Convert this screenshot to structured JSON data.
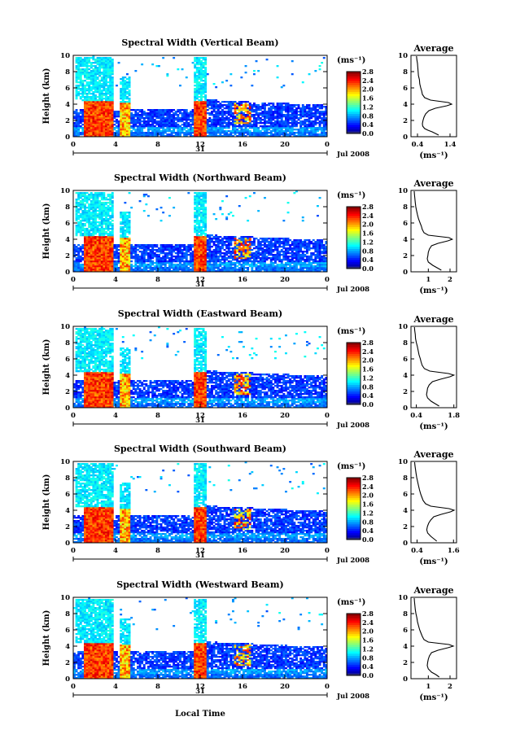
{
  "figure": {
    "xlabel": "Local Time",
    "date_label": "Jul 2008",
    "day_label": "31"
  },
  "chart_data": [
    {
      "type": "heatmap",
      "title": "Spectral Width (Vertical Beam)",
      "ylabel": "Height (km)",
      "xlim": [
        0,
        24
      ],
      "ylim": [
        0,
        10
      ],
      "xticks": [
        "0",
        "4",
        "8",
        "12",
        "16",
        "20",
        "0"
      ],
      "yticks": [
        "0",
        "2",
        "4",
        "6",
        "8",
        "10"
      ],
      "colorbar": {
        "unit": "(ms⁻¹)",
        "ticks": [
          "0.0",
          "0.4",
          "0.8",
          "1.2",
          "1.6",
          "2.0",
          "2.4",
          "2.8"
        ],
        "range": [
          0,
          2.8
        ]
      },
      "average": {
        "title": "Average",
        "xlabel": "(ms⁻¹)",
        "xticks": [
          "0.4",
          "1.4"
        ],
        "xlim": [
          0.2,
          1.6
        ],
        "profile": [
          [
            0.2,
            1.05
          ],
          [
            0.4,
            0.95
          ],
          [
            0.6,
            0.85
          ],
          [
            0.8,
            0.72
          ],
          [
            1.0,
            0.62
          ],
          [
            1.3,
            0.56
          ],
          [
            1.6,
            0.55
          ],
          [
            2.0,
            0.57
          ],
          [
            2.4,
            0.6
          ],
          [
            2.8,
            0.65
          ],
          [
            3.2,
            0.75
          ],
          [
            3.5,
            0.95
          ],
          [
            3.8,
            1.3
          ],
          [
            4.0,
            1.45
          ],
          [
            4.2,
            1.35
          ],
          [
            4.5,
            0.8
          ],
          [
            4.8,
            0.62
          ],
          [
            5.2,
            0.55
          ],
          [
            5.6,
            0.53
          ],
          [
            6.0,
            0.5
          ],
          [
            6.5,
            0.47
          ],
          [
            7.0,
            0.46
          ],
          [
            7.5,
            0.43
          ],
          [
            8.0,
            0.42
          ],
          [
            8.5,
            0.41
          ],
          [
            9.0,
            0.4
          ],
          [
            9.5,
            0.38
          ],
          [
            9.9,
            0.37
          ]
        ]
      }
    },
    {
      "type": "heatmap",
      "title": "Spectral Width (Northward Beam)",
      "ylabel": "Height (km)",
      "xlim": [
        0,
        24
      ],
      "ylim": [
        0,
        10
      ],
      "xticks": [
        "0",
        "4",
        "8",
        "12",
        "16",
        "20",
        "0"
      ],
      "yticks": [
        "0",
        "2",
        "4",
        "6",
        "8",
        "10"
      ],
      "colorbar": {
        "unit": "(ms⁻¹)",
        "ticks": [
          "0.0",
          "0.4",
          "0.8",
          "1.2",
          "1.6",
          "2.0",
          "2.4",
          "2.8"
        ],
        "range": [
          0,
          2.8
        ]
      },
      "average": {
        "title": "Average",
        "xlabel": "(ms⁻¹)",
        "xticks": [
          "1",
          "2"
        ],
        "xlim": [
          0.2,
          2.3
        ],
        "profile": [
          [
            0.2,
            1.6
          ],
          [
            0.5,
            1.4
          ],
          [
            0.8,
            1.2
          ],
          [
            1.2,
            1.0
          ],
          [
            1.6,
            0.95
          ],
          [
            2.0,
            0.98
          ],
          [
            2.4,
            1.0
          ],
          [
            2.8,
            1.05
          ],
          [
            3.2,
            1.15
          ],
          [
            3.5,
            1.45
          ],
          [
            3.8,
            1.9
          ],
          [
            4.0,
            2.1
          ],
          [
            4.2,
            1.95
          ],
          [
            4.5,
            1.0
          ],
          [
            4.8,
            0.8
          ],
          [
            5.2,
            0.72
          ],
          [
            5.6,
            0.68
          ],
          [
            6.0,
            0.62
          ],
          [
            6.5,
            0.55
          ],
          [
            7.0,
            0.5
          ],
          [
            7.5,
            0.46
          ],
          [
            8.0,
            0.42
          ],
          [
            8.5,
            0.4
          ],
          [
            9.0,
            0.38
          ],
          [
            9.5,
            0.36
          ],
          [
            9.9,
            0.35
          ]
        ]
      }
    },
    {
      "type": "heatmap",
      "title": "Spectral Width (Eastward Beam)",
      "ylabel": "Height (km)",
      "xlim": [
        0,
        24
      ],
      "ylim": [
        0,
        10
      ],
      "xticks": [
        "0",
        "4",
        "8",
        "12",
        "16",
        "20",
        "0"
      ],
      "yticks": [
        "0",
        "2",
        "4",
        "6",
        "8",
        "10"
      ],
      "colorbar": {
        "unit": "(ms⁻¹)",
        "ticks": [
          "0.0",
          "0.4",
          "0.8",
          "1.2",
          "1.6",
          "2.0",
          "2.4",
          "2.8"
        ],
        "range": [
          0,
          2.8
        ]
      },
      "average": {
        "title": "Average",
        "xlabel": "(ms⁻¹)",
        "xticks": [
          "0.4",
          "1.8"
        ],
        "xlim": [
          0.2,
          1.9
        ],
        "profile": [
          [
            0.2,
            1.25
          ],
          [
            0.5,
            1.1
          ],
          [
            0.8,
            0.95
          ],
          [
            1.2,
            0.82
          ],
          [
            1.6,
            0.78
          ],
          [
            2.0,
            0.8
          ],
          [
            2.4,
            0.82
          ],
          [
            2.8,
            0.88
          ],
          [
            3.2,
            1.0
          ],
          [
            3.5,
            1.3
          ],
          [
            3.8,
            1.65
          ],
          [
            4.0,
            1.8
          ],
          [
            4.2,
            1.6
          ],
          [
            4.5,
            0.9
          ],
          [
            4.8,
            0.7
          ],
          [
            5.2,
            0.62
          ],
          [
            5.6,
            0.58
          ],
          [
            6.0,
            0.55
          ],
          [
            6.5,
            0.5
          ],
          [
            7.0,
            0.47
          ],
          [
            7.5,
            0.44
          ],
          [
            8.0,
            0.4
          ],
          [
            8.5,
            0.37
          ],
          [
            9.0,
            0.36
          ],
          [
            9.5,
            0.34
          ],
          [
            9.9,
            0.33
          ]
        ]
      }
    },
    {
      "type": "heatmap",
      "title": "Spectral Width (Southward Beam)",
      "ylabel": "Height (km)",
      "xlim": [
        0,
        24
      ],
      "ylim": [
        0,
        10
      ],
      "xticks": [
        "0",
        "4",
        "8",
        "12",
        "16",
        "20",
        "0"
      ],
      "yticks": [
        "0",
        "2",
        "4",
        "6",
        "8",
        "10"
      ],
      "colorbar": {
        "unit": "(ms⁻¹)",
        "ticks": [
          "0.0",
          "0.4",
          "0.8",
          "1.2",
          "1.6",
          "2.0",
          "2.4",
          "2.8"
        ],
        "range": [
          0,
          2.8
        ]
      },
      "average": {
        "title": "Average",
        "xlabel": "(ms⁻¹)",
        "xticks": [
          "0.4",
          "1.6"
        ],
        "xlim": [
          0.2,
          1.7
        ],
        "profile": [
          [
            0.2,
            1.05
          ],
          [
            0.5,
            0.95
          ],
          [
            0.8,
            0.85
          ],
          [
            1.2,
            0.75
          ],
          [
            1.6,
            0.72
          ],
          [
            2.0,
            0.74
          ],
          [
            2.4,
            0.78
          ],
          [
            2.8,
            0.85
          ],
          [
            3.2,
            0.95
          ],
          [
            3.5,
            1.2
          ],
          [
            3.8,
            1.5
          ],
          [
            4.0,
            1.62
          ],
          [
            4.2,
            1.45
          ],
          [
            4.5,
            0.85
          ],
          [
            4.8,
            0.68
          ],
          [
            5.2,
            0.6
          ],
          [
            5.6,
            0.56
          ],
          [
            6.0,
            0.52
          ],
          [
            6.5,
            0.48
          ],
          [
            7.0,
            0.45
          ],
          [
            7.5,
            0.42
          ],
          [
            8.0,
            0.39
          ],
          [
            8.5,
            0.37
          ],
          [
            9.0,
            0.35
          ],
          [
            9.5,
            0.33
          ],
          [
            9.9,
            0.32
          ]
        ]
      }
    },
    {
      "type": "heatmap",
      "title": "Spectral Width (Westward Beam)",
      "ylabel": "Height (km)",
      "xlim": [
        0,
        24
      ],
      "ylim": [
        0,
        10
      ],
      "xticks": [
        "0",
        "4",
        "8",
        "12",
        "16",
        "20",
        "0"
      ],
      "yticks": [
        "0",
        "2",
        "4",
        "6",
        "8",
        "10"
      ],
      "colorbar": {
        "unit": "(ms⁻¹)",
        "ticks": [
          "0.0",
          "0.4",
          "0.8",
          "1.2",
          "1.6",
          "2.0",
          "2.4",
          "2.8"
        ],
        "range": [
          0,
          2.8
        ]
      },
      "average": {
        "title": "Average",
        "xlabel": "(ms⁻¹)",
        "xticks": [
          "1",
          "2"
        ],
        "xlim": [
          0.2,
          2.3
        ],
        "profile": [
          [
            0.2,
            1.5
          ],
          [
            0.5,
            1.35
          ],
          [
            0.8,
            1.15
          ],
          [
            1.2,
            1.0
          ],
          [
            1.6,
            0.95
          ],
          [
            2.0,
            0.97
          ],
          [
            2.4,
            1.0
          ],
          [
            2.8,
            1.05
          ],
          [
            3.2,
            1.15
          ],
          [
            3.5,
            1.45
          ],
          [
            3.8,
            1.9
          ],
          [
            4.0,
            2.15
          ],
          [
            4.2,
            1.95
          ],
          [
            4.5,
            1.0
          ],
          [
            4.8,
            0.8
          ],
          [
            5.2,
            0.72
          ],
          [
            5.6,
            0.66
          ],
          [
            6.0,
            0.6
          ],
          [
            6.5,
            0.55
          ],
          [
            7.0,
            0.5
          ],
          [
            7.5,
            0.47
          ],
          [
            8.0,
            0.43
          ],
          [
            8.5,
            0.4
          ],
          [
            9.0,
            0.38
          ],
          [
            9.5,
            0.36
          ],
          [
            9.9,
            0.35
          ]
        ]
      }
    }
  ]
}
